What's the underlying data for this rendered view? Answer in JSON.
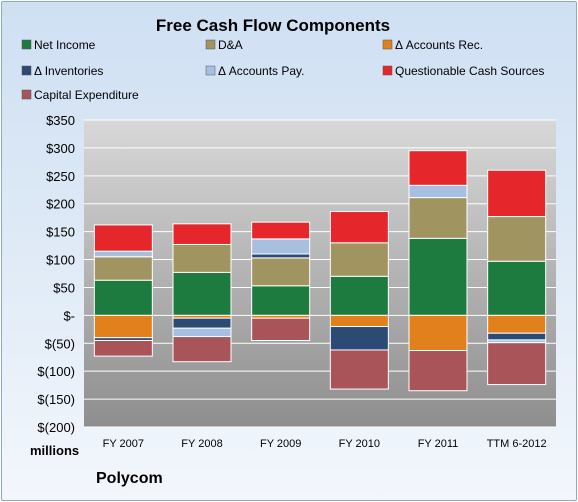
{
  "chart_data": {
    "type": "bar",
    "stacked": true,
    "title": "Free Cash Flow Components",
    "units_label": "millions",
    "company": "Polycom",
    "categories": [
      "FY 2007",
      "FY 2008",
      "FY 2009",
      "FY 2010",
      "FY 2011",
      "TTM 6-2012"
    ],
    "ylim": [
      -200,
      350
    ],
    "yticks": [
      {
        "value": 350,
        "label": "$350"
      },
      {
        "value": 300,
        "label": "$300"
      },
      {
        "value": 250,
        "label": "$250"
      },
      {
        "value": 200,
        "label": "$200"
      },
      {
        "value": 150,
        "label": "$150"
      },
      {
        "value": 100,
        "label": "$100"
      },
      {
        "value": 50,
        "label": "$50"
      },
      {
        "value": 0,
        "label": "$-"
      },
      {
        "value": -50,
        "label": "$(50)"
      },
      {
        "value": -100,
        "label": "$(100)"
      },
      {
        "value": -150,
        "label": "$(150)"
      },
      {
        "value": -200,
        "label": "$(200)"
      }
    ],
    "grid": true,
    "legend_position": "top",
    "series": [
      {
        "name": "Net Income",
        "color": "#1e7b3f",
        "values": [
          63,
          77,
          53,
          70,
          138,
          97
        ]
      },
      {
        "name": "D&A",
        "color": "#a09460",
        "values": [
          42,
          50,
          50,
          60,
          73,
          80
        ]
      },
      {
        "name": "Δ Accounts Rec.",
        "color": "#e2801c",
        "values": [
          -40,
          -5,
          -5,
          -20,
          -63,
          -32
        ]
      },
      {
        "name": "Δ Inventories",
        "color": "#2b4a74",
        "values": [
          -5,
          -18,
          7,
          -42,
          0,
          -12
        ]
      },
      {
        "name": "Δ Accounts Pay.",
        "color": "#a7c0e2",
        "values": [
          10,
          -15,
          27,
          0,
          22,
          -5
        ]
      },
      {
        "name": "Questionable Cash Sources",
        "color": "#e5262a",
        "values": [
          47,
          37,
          30,
          56,
          62,
          83
        ]
      },
      {
        "name": "Capital Expenditure",
        "color": "#a85458",
        "values": [
          -28,
          -45,
          -40,
          -70,
          -72,
          -75
        ]
      }
    ]
  }
}
